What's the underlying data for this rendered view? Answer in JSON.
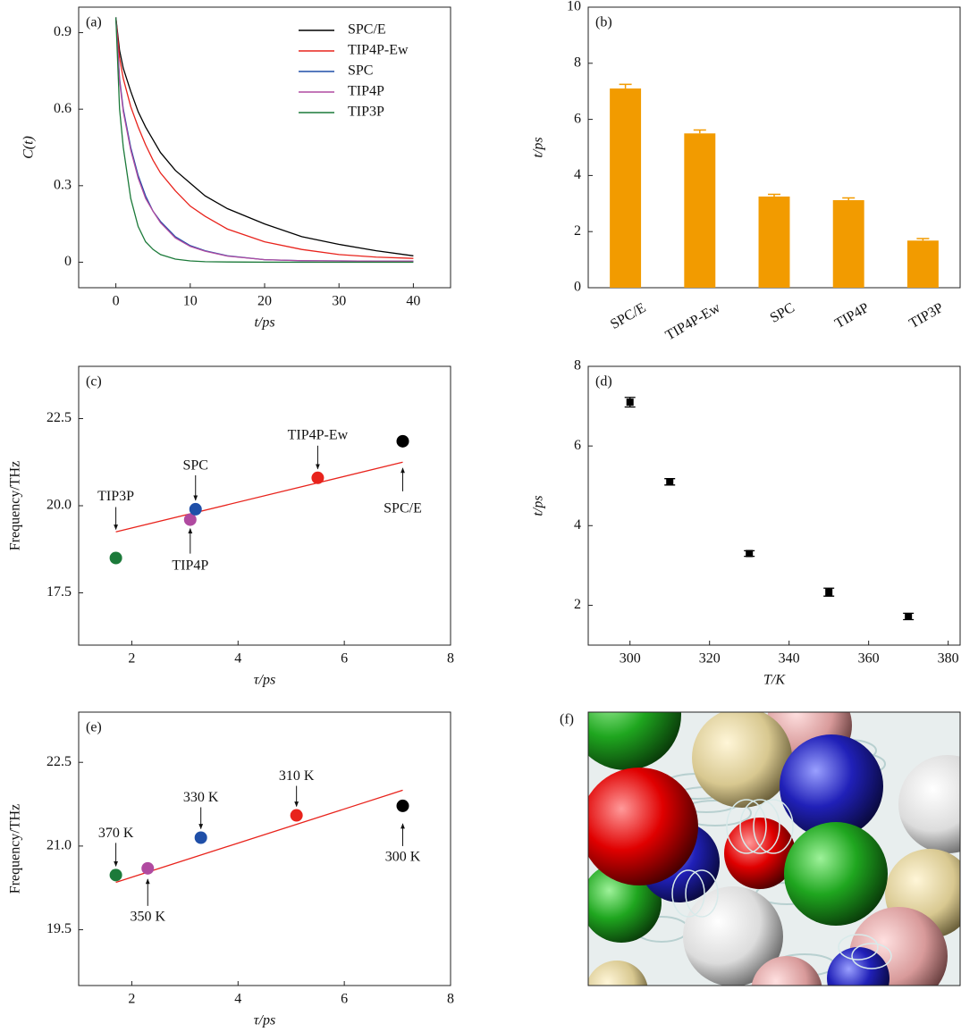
{
  "chart_data": [
    {
      "type": "line",
      "panel_label": "(a)",
      "x_label": "t/ps",
      "y_label": "C(t)",
      "x": [
        0,
        0.5,
        1,
        2,
        3,
        4,
        5,
        6,
        8,
        10,
        12,
        15,
        20,
        25,
        30,
        35,
        40
      ],
      "series": [
        {
          "name": "SPC/E",
          "color": "#000000",
          "values": [
            0.96,
            0.83,
            0.76,
            0.67,
            0.59,
            0.53,
            0.48,
            0.43,
            0.36,
            0.31,
            0.26,
            0.21,
            0.15,
            0.1,
            0.07,
            0.045,
            0.025
          ]
        },
        {
          "name": "TIP4P-Ew",
          "color": "#e8231c",
          "values": [
            0.96,
            0.8,
            0.72,
            0.61,
            0.53,
            0.46,
            0.4,
            0.35,
            0.28,
            0.22,
            0.18,
            0.13,
            0.08,
            0.05,
            0.03,
            0.02,
            0.015
          ]
        },
        {
          "name": "SPC",
          "color": "#1f4fa8",
          "values": [
            0.96,
            0.72,
            0.6,
            0.45,
            0.34,
            0.26,
            0.2,
            0.16,
            0.1,
            0.065,
            0.045,
            0.025,
            0.01,
            0.006,
            0.005,
            0.004,
            0.004
          ]
        },
        {
          "name": "TIP4P",
          "color": "#b04aa0",
          "values": [
            0.96,
            0.71,
            0.59,
            0.44,
            0.33,
            0.25,
            0.2,
            0.155,
            0.095,
            0.062,
            0.043,
            0.024,
            0.01,
            0.006,
            0.005,
            0.004,
            0.004
          ]
        },
        {
          "name": "TIP3P",
          "color": "#1c7a3a",
          "values": [
            0.96,
            0.6,
            0.45,
            0.25,
            0.14,
            0.08,
            0.05,
            0.03,
            0.012,
            0.005,
            0.002,
            0.001,
            0,
            0,
            0,
            0,
            0
          ]
        }
      ],
      "xlim": [
        -5,
        45
      ],
      "xticks": [
        0,
        10,
        20,
        30,
        40
      ],
      "ylim": [
        -0.1,
        1.0
      ],
      "yticks": [
        0,
        0.3,
        0.6,
        0.9
      ],
      "legend": "upper right"
    },
    {
      "type": "bar",
      "panel_label": "(b)",
      "y_label": "t/ps",
      "categories": [
        "SPC/E",
        "TIP4P-Ew",
        "SPC",
        "TIP4P",
        "TIP3P"
      ],
      "values": [
        7.1,
        5.5,
        3.25,
        3.12,
        1.68
      ],
      "errors": [
        0.15,
        0.12,
        0.08,
        0.08,
        0.07
      ],
      "color": "#f29b00",
      "ylim": [
        0,
        10
      ],
      "yticks": [
        0,
        2,
        4,
        6,
        8,
        10
      ]
    },
    {
      "type": "scatter",
      "panel_label": "(c)",
      "x_label": "τ/ps",
      "y_label": "Frequency/THz",
      "x": [
        1.7,
        3.1,
        3.2,
        5.5,
        7.1
      ],
      "values": [
        18.5,
        19.6,
        19.9,
        20.8,
        21.85
      ],
      "labels": [
        "TIP3P",
        "TIP4P",
        "SPC",
        "TIP4P-Ew",
        "SPC/E"
      ],
      "colors": [
        "#1c7a3a",
        "#b04aa0",
        "#1f4fa8",
        "#e8231c",
        "#000000"
      ],
      "fit": {
        "x": [
          1.7,
          7.1
        ],
        "values": [
          19.25,
          21.25
        ],
        "color": "#e8231c"
      },
      "xlim": [
        1,
        8
      ],
      "xticks": [
        2,
        4,
        6,
        8
      ],
      "ylim": [
        16,
        24
      ],
      "yticks": [
        17.5,
        {
          "value": 20,
          "label": "20.0"
        },
        22.5
      ]
    },
    {
      "type": "errorbar",
      "panel_label": "(d)",
      "x_label": "T/K",
      "y_label": "t/ps",
      "x": [
        300,
        310,
        330,
        350,
        370
      ],
      "values": [
        7.1,
        5.1,
        3.3,
        2.33,
        1.72
      ],
      "errors": [
        0.12,
        0.08,
        0.07,
        0.1,
        0.08
      ],
      "color": "#000000",
      "xlim": [
        289.5,
        383
      ],
      "xticks": [
        300,
        320,
        340,
        360,
        380
      ],
      "ylim": [
        1,
        8
      ],
      "yticks": [
        2,
        4,
        6,
        8
      ]
    },
    {
      "type": "scatter",
      "panel_label": "(e)",
      "x_label": "τ/ps",
      "y_label": "Frequency/THz",
      "x": [
        1.7,
        2.3,
        3.3,
        5.1,
        7.1
      ],
      "values": [
        20.48,
        20.6,
        21.15,
        21.55,
        21.72
      ],
      "labels": [
        "370 K",
        "350 K",
        "330 K",
        "310 K",
        "300 K"
      ],
      "colors": [
        "#1c7a3a",
        "#b04aa0",
        "#1f4fa8",
        "#e8231c",
        "#000000"
      ],
      "fit": {
        "x": [
          1.7,
          7.1
        ],
        "values": [
          20.35,
          22.0
        ],
        "color": "#e8231c"
      },
      "xlim": [
        1,
        8
      ],
      "xticks": [
        2,
        4,
        6,
        8
      ],
      "ylim": [
        18.5,
        23.4
      ],
      "yticks": [
        19.5,
        {
          "value": 21,
          "label": "21.0"
        },
        22.5
      ]
    }
  ],
  "image_panel": {
    "panel_label": "(f)"
  }
}
